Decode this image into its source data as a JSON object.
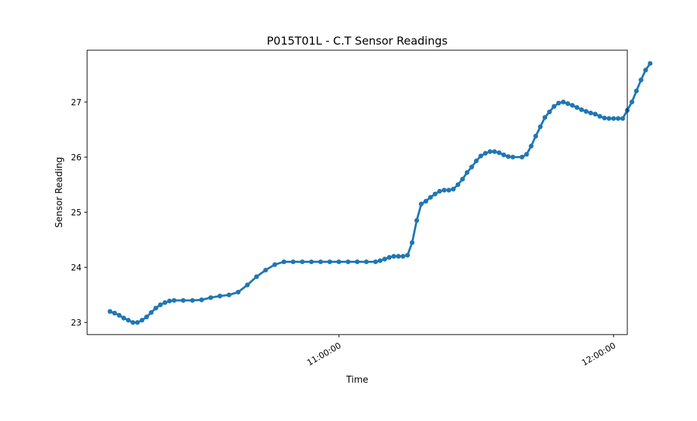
{
  "chart_data": {
    "type": "scatter",
    "title": "P015T01L - C.T Sensor Readings",
    "xlabel": "Time",
    "ylabel": "Sensor Reading",
    "x_tick_labels": [
      "11:00:00",
      "12:00:00"
    ],
    "y_tick_labels": [
      "23",
      "24",
      "25",
      "26",
      "27"
    ],
    "y_ticks": [
      23,
      24,
      25,
      26,
      27
    ],
    "xlim": [
      "10:05:00",
      "12:03:00"
    ],
    "ylim": [
      22.78,
      27.94
    ],
    "grid": false,
    "legend": "none",
    "color": "#1f77b4",
    "series": [
      {
        "points": [
          [
            "10:10:00",
            23.2
          ],
          [
            "10:11:00",
            23.17
          ],
          [
            "10:12:00",
            23.13
          ],
          [
            "10:13:00",
            23.08
          ],
          [
            "10:14:00",
            23.04
          ],
          [
            "10:15:00",
            23.0
          ],
          [
            "10:16:00",
            23.0
          ],
          [
            "10:17:00",
            23.04
          ],
          [
            "10:18:00",
            23.1
          ],
          [
            "10:19:00",
            23.18
          ],
          [
            "10:20:00",
            23.26
          ],
          [
            "10:21:00",
            23.32
          ],
          [
            "10:22:00",
            23.36
          ],
          [
            "10:23:00",
            23.39
          ],
          [
            "10:24:00",
            23.4
          ],
          [
            "10:26:00",
            23.4
          ],
          [
            "10:28:00",
            23.4
          ],
          [
            "10:30:00",
            23.41
          ],
          [
            "10:32:00",
            23.45
          ],
          [
            "10:34:00",
            23.48
          ],
          [
            "10:36:00",
            23.5
          ],
          [
            "10:38:00",
            23.55
          ],
          [
            "10:40:00",
            23.68
          ],
          [
            "10:42:00",
            23.83
          ],
          [
            "10:44:00",
            23.95
          ],
          [
            "10:46:00",
            24.05
          ],
          [
            "10:48:00",
            24.1
          ],
          [
            "10:50:00",
            24.1
          ],
          [
            "10:52:00",
            24.1
          ],
          [
            "10:54:00",
            24.1
          ],
          [
            "10:56:00",
            24.1
          ],
          [
            "10:58:00",
            24.1
          ],
          [
            "11:00:00",
            24.1
          ],
          [
            "11:02:00",
            24.1
          ],
          [
            "11:04:00",
            24.1
          ],
          [
            "11:06:00",
            24.1
          ],
          [
            "11:08:00",
            24.1
          ],
          [
            "11:09:00",
            24.12
          ],
          [
            "11:10:00",
            24.15
          ],
          [
            "11:11:00",
            24.18
          ],
          [
            "11:12:00",
            24.2
          ],
          [
            "11:13:00",
            24.2
          ],
          [
            "11:14:00",
            24.2
          ],
          [
            "11:15:00",
            24.22
          ],
          [
            "11:16:00",
            24.45
          ],
          [
            "11:17:00",
            24.85
          ],
          [
            "11:18:00",
            25.15
          ],
          [
            "11:19:00",
            25.2
          ],
          [
            "11:20:00",
            25.27
          ],
          [
            "11:21:00",
            25.33
          ],
          [
            "11:22:00",
            25.38
          ],
          [
            "11:23:00",
            25.4
          ],
          [
            "11:24:00",
            25.4
          ],
          [
            "11:25:00",
            25.42
          ],
          [
            "11:26:00",
            25.5
          ],
          [
            "11:27:00",
            25.6
          ],
          [
            "11:28:00",
            25.72
          ],
          [
            "11:29:00",
            25.82
          ],
          [
            "11:30:00",
            25.93
          ],
          [
            "11:31:00",
            26.02
          ],
          [
            "11:32:00",
            26.07
          ],
          [
            "11:33:00",
            26.1
          ],
          [
            "11:34:00",
            26.1
          ],
          [
            "11:35:00",
            26.08
          ],
          [
            "11:36:00",
            26.04
          ],
          [
            "11:37:00",
            26.01
          ],
          [
            "11:38:00",
            26.0
          ],
          [
            "11:40:00",
            26.0
          ],
          [
            "11:41:00",
            26.05
          ],
          [
            "11:42:00",
            26.2
          ],
          [
            "11:43:00",
            26.38
          ],
          [
            "11:44:00",
            26.55
          ],
          [
            "11:45:00",
            26.72
          ],
          [
            "11:46:00",
            26.82
          ],
          [
            "11:47:00",
            26.92
          ],
          [
            "11:48:00",
            26.98
          ],
          [
            "11:49:00",
            27.0
          ],
          [
            "11:50:00",
            26.97
          ],
          [
            "11:51:00",
            26.94
          ],
          [
            "11:52:00",
            26.9
          ],
          [
            "11:53:00",
            26.86
          ],
          [
            "11:54:00",
            26.83
          ],
          [
            "11:55:00",
            26.8
          ],
          [
            "11:56:00",
            26.78
          ],
          [
            "11:57:00",
            26.74
          ],
          [
            "11:58:00",
            26.71
          ],
          [
            "11:59:00",
            26.7
          ],
          [
            "12:00:00",
            26.7
          ],
          [
            "12:01:00",
            26.7
          ],
          [
            "12:02:00",
            26.7
          ],
          [
            "12:03:00",
            26.85
          ],
          [
            "12:04:00",
            27.0
          ],
          [
            "12:05:00",
            27.2
          ],
          [
            "12:06:00",
            27.4
          ],
          [
            "12:07:00",
            27.58
          ],
          [
            "12:08:00",
            27.7
          ]
        ]
      }
    ]
  }
}
